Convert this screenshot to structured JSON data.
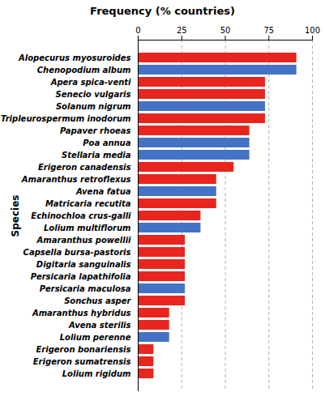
{
  "chart_data": {
    "type": "bar",
    "orientation": "horizontal",
    "title": "Frequency (% countries)",
    "ylabel": "Species",
    "categories": [
      "Alopecurus myosuroides",
      "Chenopodium album",
      "Apera spica-venti",
      "Senecio vulgaris",
      "Solanum nigrum",
      "Tripleurospermum inodorum",
      "Papaver rhoeas",
      "Poa annua",
      "Stellaria media",
      "Erigeron canadensis",
      "Amaranthus retroflexus",
      "Avena fatua",
      "Matricaria recutita",
      "Echinochloa crus-galli",
      "Lolium multiflorum",
      "Amaranthus powellii",
      "Capsella bursa-pastoris",
      "Digitaria sanguinalis",
      "Persicaria lapathifolia",
      "Persicaria maculosa",
      "Sonchus asper",
      "Amaranthus hybridus",
      "Avena sterilis",
      "Lolium perenne",
      "Erigeron bonariensis",
      "Erigeron sumatrensis",
      "Lolium rigidum"
    ],
    "values": [
      91,
      91,
      73,
      73,
      73,
      73,
      64,
      64,
      64,
      55,
      45,
      45,
      45,
      36,
      36,
      27,
      27,
      27,
      27,
      27,
      27,
      18,
      18,
      18,
      9,
      9,
      9
    ],
    "colors": [
      "#e8251e",
      "#4472c4",
      "#e8251e",
      "#e8251e",
      "#4472c4",
      "#e8251e",
      "#e8251e",
      "#4472c4",
      "#4472c4",
      "#e8251e",
      "#e8251e",
      "#4472c4",
      "#e8251e",
      "#e8251e",
      "#4472c4",
      "#e8251e",
      "#e8251e",
      "#e8251e",
      "#e8251e",
      "#4472c4",
      "#e8251e",
      "#e8251e",
      "#e8251e",
      "#4472c4",
      "#e8251e",
      "#e8251e",
      "#e8251e"
    ],
    "xlim": [
      0,
      100
    ],
    "xticks": [
      0,
      25,
      50,
      75,
      100
    ],
    "grid": true
  }
}
